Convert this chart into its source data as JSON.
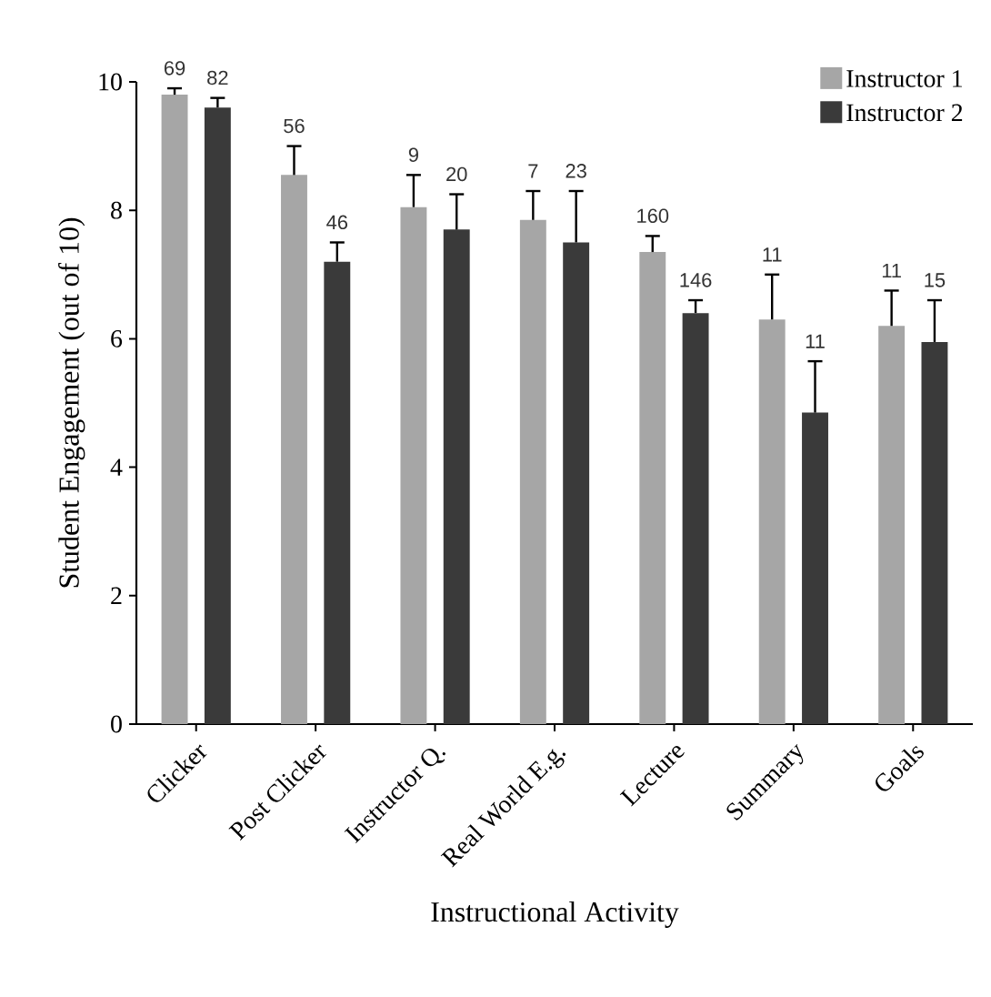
{
  "chart_data": {
    "type": "bar",
    "xlabel": "Instructional Activity",
    "ylabel": "Student Engagement (out of 10)",
    "categories": [
      "Clicker",
      "Post Clicker",
      "Instructor Q.",
      "Real World E.g.",
      "Lecture",
      "Summary",
      "Goals"
    ],
    "series": [
      {
        "name": "Instructor 1",
        "color": "#a6a6a6",
        "values": [
          9.8,
          8.55,
          8.05,
          7.85,
          7.35,
          6.3,
          6.2
        ],
        "errors": [
          [
            9.8,
            9.9
          ],
          [
            8.55,
            9.0
          ],
          [
            8.05,
            8.55
          ],
          [
            7.85,
            8.3
          ],
          [
            7.35,
            7.6
          ],
          [
            6.3,
            7.0
          ],
          [
            6.2,
            6.75
          ]
        ]
      },
      {
        "name": "Instructor 2",
        "color": "#3a3a3a",
        "values": [
          9.6,
          7.2,
          7.7,
          7.5,
          6.4,
          4.85,
          5.95
        ],
        "errors": [
          [
            9.6,
            9.75
          ],
          [
            7.2,
            7.5
          ],
          [
            7.7,
            8.25
          ],
          [
            7.5,
            8.3
          ],
          [
            6.4,
            6.6
          ],
          [
            4.85,
            5.65
          ],
          [
            5.95,
            6.6
          ]
        ]
      }
    ],
    "annotations": [
      {
        "text": "69",
        "x": "Clicker",
        "y": 9.8
      },
      {
        "text": "82",
        "x": "Clicker",
        "y": 9.6
      },
      {
        "text": "56",
        "x": "Post Clicker",
        "y": 8.55
      },
      {
        "text": "46",
        "x": "Post Clicker",
        "y": 7.2
      },
      {
        "text": "9",
        "x": "Instructor Q.",
        "y": 8.05
      },
      {
        "text": "20",
        "x": "Instructor Q.",
        "y": 7.7
      },
      {
        "text": "7",
        "x": "Real World E.g.",
        "y": 7.85
      },
      "23",
      {
        "text": "160",
        "x": "Lecture",
        "y": 7.35
      },
      {
        "text": "146",
        "x": "Lecture",
        "y": 6.4
      },
      {
        "text": "11",
        "x": "Summary",
        "y": 6.3
      },
      {
        "text": "11",
        "x": "Summary",
        "y": 5.65
      },
      {
        "text": "11",
        "x": "Goals",
        "y": 6.2
      },
      {
        "text": "15",
        "x": "Goals",
        "y": 5.95
      }
    ],
    "ylim": [
      0,
      10
    ],
    "yticks": [
      0,
      2,
      4,
      6,
      8,
      10
    ],
    "grid": false,
    "legend": "top right"
  }
}
